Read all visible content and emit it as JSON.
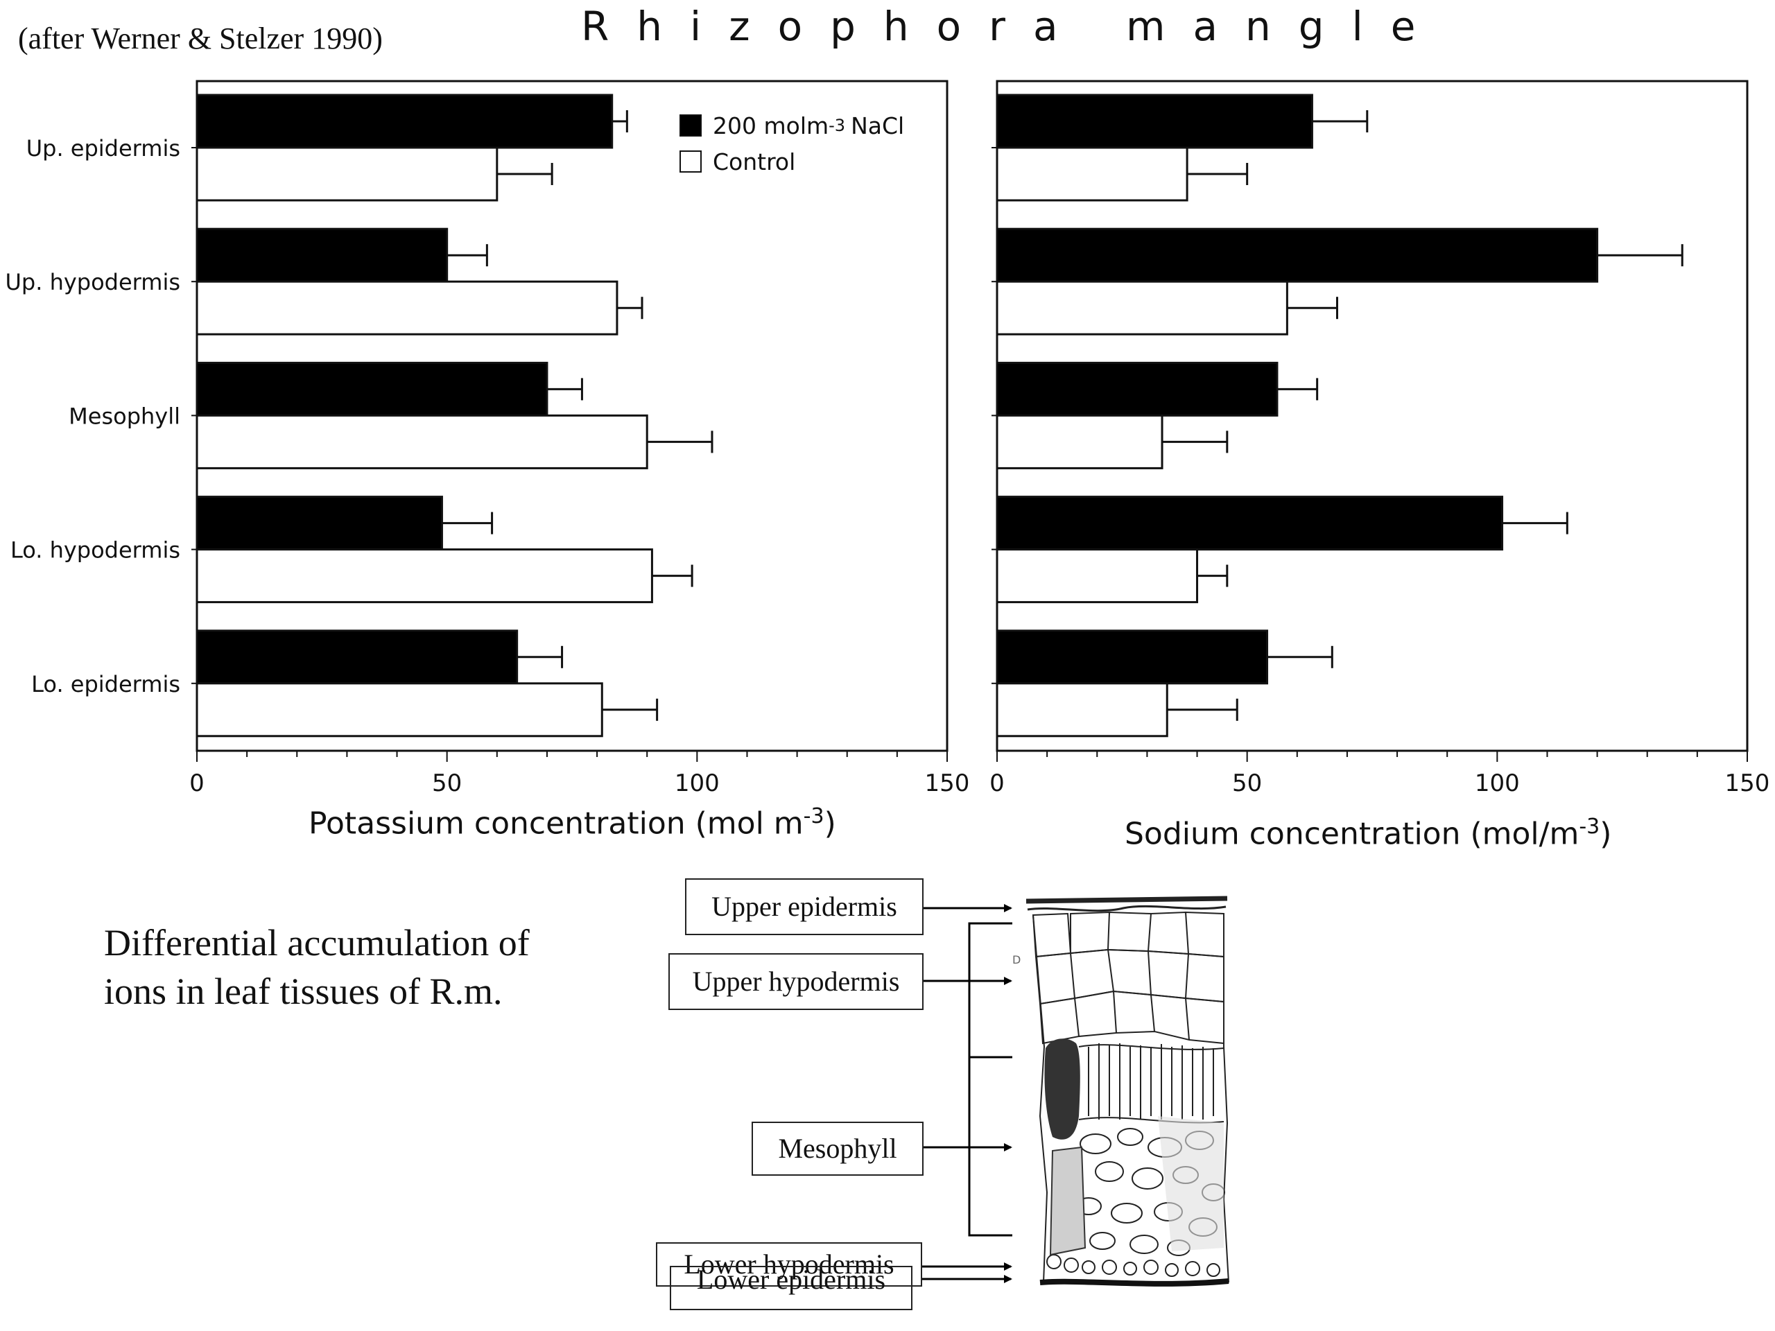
{
  "header": {
    "citation": "(after Werner & Stelzer 1990)",
    "title": "Rhizophora mangle"
  },
  "legend": {
    "nacl_label": "200 molm",
    "nacl_sup": "-3",
    "nacl_suffix": "NaCl",
    "control_label": "Control"
  },
  "colors": {
    "nacl": "#000000",
    "control": "#ffffff",
    "stroke": "#111111"
  },
  "chart_data": [
    {
      "type": "bar",
      "orientation": "horizontal",
      "categories": [
        "Up. epidermis",
        "Up. hypodermis",
        "Mesophyll",
        "Lo. hypodermis",
        "Lo. epidermis"
      ],
      "series": [
        {
          "name": "200 molm-3 NaCl",
          "values": [
            83,
            50,
            70,
            49,
            64
          ],
          "errors": [
            3,
            8,
            7,
            10,
            9
          ]
        },
        {
          "name": "Control",
          "values": [
            60,
            84,
            90,
            91,
            81
          ],
          "errors": [
            11,
            5,
            13,
            8,
            11
          ]
        }
      ],
      "xlabel": "Potassium concentration (mol m",
      "xlabel_sup": "-3",
      "xlabel_end": ")",
      "xlim": [
        0,
        150
      ],
      "xticks": [
        0,
        50,
        100,
        150
      ],
      "legend": "top-right"
    },
    {
      "type": "bar",
      "orientation": "horizontal",
      "categories": [
        "Up. epidermis",
        "Up. hypodermis",
        "Mesophyll",
        "Lo. hypodermis",
        "Lo. epidermis"
      ],
      "series": [
        {
          "name": "200 molm-3 NaCl",
          "values": [
            63,
            120,
            56,
            101,
            54
          ],
          "errors": [
            11,
            17,
            8,
            13,
            13
          ]
        },
        {
          "name": "Control",
          "values": [
            38,
            58,
            33,
            40,
            34
          ],
          "errors": [
            12,
            10,
            13,
            6,
            14
          ]
        }
      ],
      "xlabel": "Sodium concentration (mol/m",
      "xlabel_sup": "-3",
      "xlabel_end": ")",
      "xlim": [
        0,
        150
      ],
      "xticks": [
        0,
        50,
        100,
        150
      ]
    }
  ],
  "caption": "Differential accumulation of ions in leaf tissues of R.m.",
  "diagram": {
    "labels": [
      "Upper epidermis",
      "Upper hypodermis",
      "Mesophyll",
      "Lower hypodermis",
      "Lower epidermis"
    ],
    "leaf_marker": "D"
  }
}
